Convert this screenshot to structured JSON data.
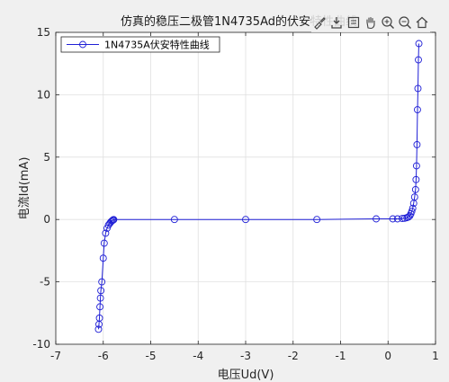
{
  "chart_data": {
    "type": "line",
    "title": "仿真的稳压二极管1N4735Ad的伏安特性曲线",
    "xlabel": "电压Ud(V)",
    "ylabel": "电流Id(mA)",
    "xlim": [
      -7,
      1
    ],
    "ylim": [
      -10,
      15
    ],
    "xticks": [
      -7,
      -6,
      -5,
      -4,
      -3,
      -2,
      -1,
      0,
      1
    ],
    "yticks": [
      -10,
      -5,
      0,
      5,
      10,
      15
    ],
    "grid": true,
    "legend_position": "top-left",
    "series": [
      {
        "name": "1N4735A伏安特性曲线",
        "color": "#1f1fd6",
        "marker": "circle",
        "x": [
          -6.1,
          -6.09,
          -6.08,
          -6.07,
          -6.06,
          -6.05,
          -6.03,
          -6.0,
          -5.98,
          -5.95,
          -5.92,
          -5.89,
          -5.86,
          -5.84,
          -5.82,
          -5.8,
          -5.79,
          -5.78,
          -4.5,
          -3.0,
          -1.5,
          -0.25,
          0.1,
          0.2,
          0.3,
          0.35,
          0.4,
          0.43,
          0.46,
          0.48,
          0.5,
          0.52,
          0.54,
          0.56,
          0.58,
          0.59,
          0.6,
          0.61,
          0.62,
          0.63,
          0.64,
          0.65
        ],
        "y": [
          -8.8,
          -8.4,
          -7.9,
          -7.0,
          -6.3,
          -5.7,
          -5.0,
          -3.1,
          -1.9,
          -1.1,
          -0.7,
          -0.45,
          -0.3,
          -0.2,
          -0.12,
          -0.06,
          -0.03,
          -0.01,
          0.0,
          0.0,
          0.0,
          0.05,
          0.05,
          0.05,
          0.08,
          0.1,
          0.15,
          0.2,
          0.3,
          0.45,
          0.65,
          0.9,
          1.3,
          1.8,
          2.4,
          3.2,
          4.3,
          6.0,
          8.8,
          10.5,
          12.8,
          14.1
        ]
      }
    ]
  },
  "toolbar": {
    "icons": [
      "brush-icon",
      "save-icon",
      "data-tips-icon",
      "pan-icon",
      "zoom-in-icon",
      "zoom-out-icon",
      "home-icon"
    ]
  },
  "colors": {
    "figure_bg": "#f0f0f0",
    "axes_bg": "#ffffff",
    "grid": "#e0e0e0",
    "axis": "#262626",
    "line": "#1f1fd6"
  }
}
